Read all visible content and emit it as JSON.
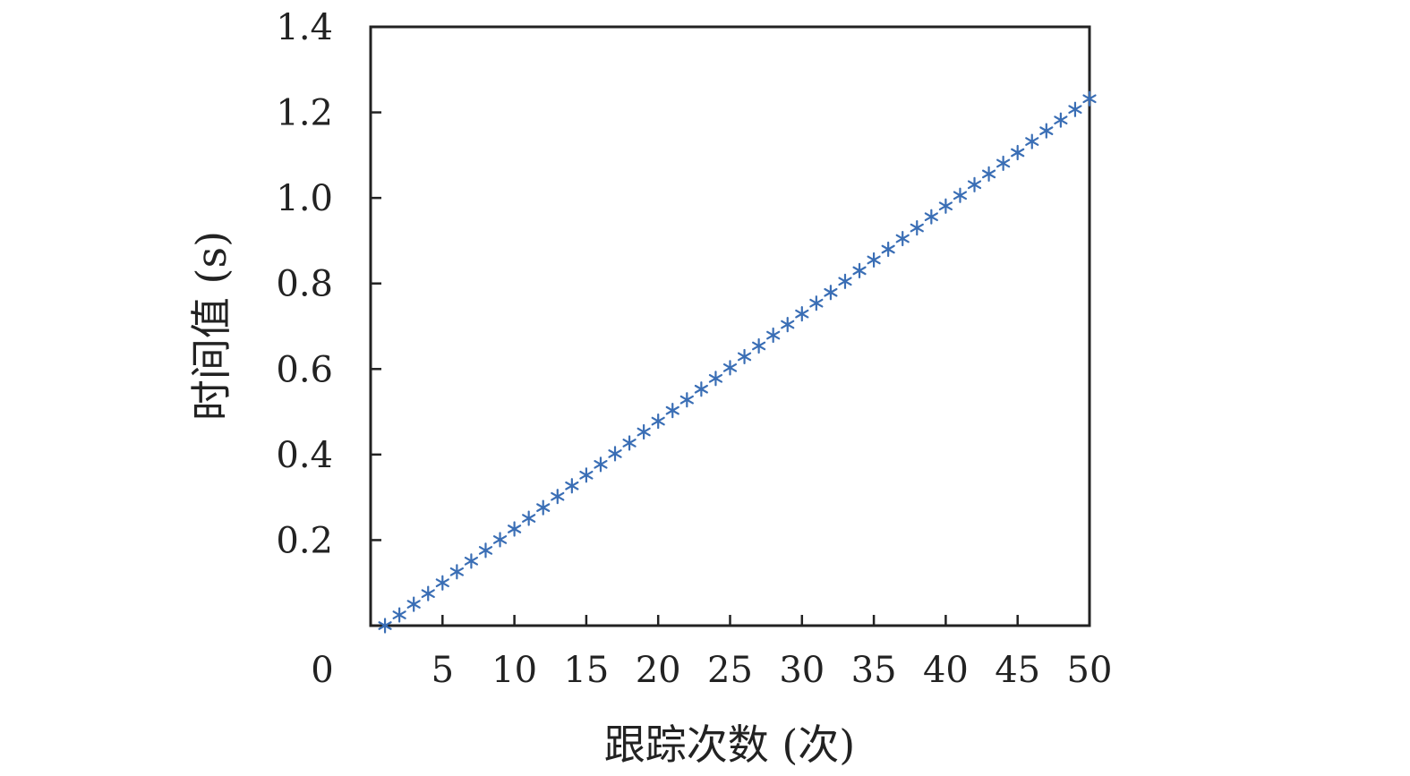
{
  "chart_data": {
    "type": "scatter",
    "title": "",
    "xlabel": "跟踪次数 (次)",
    "ylabel": "时间值 (s)",
    "xlim": [
      0,
      50
    ],
    "ylim": [
      0,
      1.4
    ],
    "x_origin_label": "0",
    "xticks": [
      "5",
      "10",
      "15",
      "20",
      "25",
      "30",
      "35",
      "40",
      "45",
      "50"
    ],
    "yticks": [
      "0.2",
      "0.4",
      "0.6",
      "0.8",
      "1.0",
      "1.2",
      "1.4"
    ],
    "marker": "asterisk",
    "marker_color": "#3a6eb5",
    "grid": false,
    "legend": false,
    "series": [
      {
        "x": [
          1,
          2,
          3,
          4,
          5,
          6,
          7,
          8,
          9,
          10,
          11,
          12,
          13,
          14,
          15,
          16,
          17,
          18,
          19,
          20,
          21,
          22,
          23,
          24,
          25,
          26,
          27,
          28,
          29,
          30,
          31,
          32,
          33,
          34,
          35,
          36,
          37,
          38,
          39,
          40,
          41,
          42,
          43,
          44,
          45,
          46,
          47,
          48,
          49,
          50
        ],
        "y": [
          0.0,
          0.025,
          0.05,
          0.075,
          0.1,
          0.126,
          0.151,
          0.176,
          0.201,
          0.226,
          0.251,
          0.276,
          0.302,
          0.327,
          0.352,
          0.377,
          0.402,
          0.427,
          0.453,
          0.478,
          0.503,
          0.528,
          0.553,
          0.578,
          0.603,
          0.629,
          0.654,
          0.679,
          0.704,
          0.729,
          0.754,
          0.779,
          0.805,
          0.83,
          0.855,
          0.88,
          0.905,
          0.93,
          0.956,
          0.981,
          1.006,
          1.031,
          1.056,
          1.081,
          1.106,
          1.132,
          1.157,
          1.182,
          1.207,
          1.232
        ]
      }
    ]
  }
}
